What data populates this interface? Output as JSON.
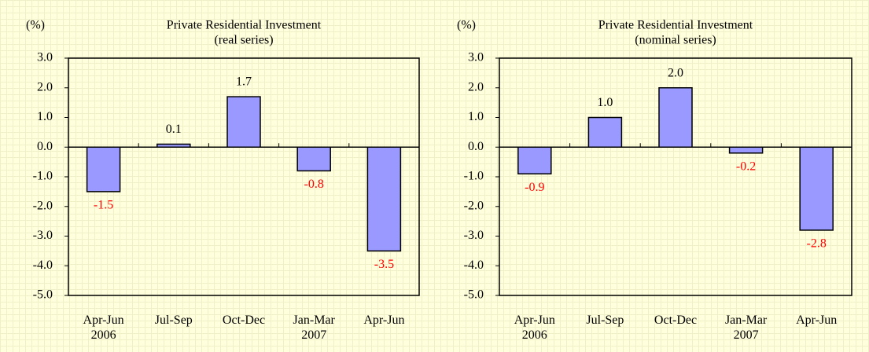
{
  "chart_data": [
    {
      "type": "bar",
      "title": "Private Residential Investment",
      "subtitle": "(real series)",
      "y_label": "(%)",
      "categories": [
        "Apr-Jun\n2006",
        "Jul-Sep",
        "Oct-Dec",
        "Jan-Mar\n2007",
        "Apr-Jun"
      ],
      "values": [
        -1.5,
        0.1,
        1.7,
        -0.8,
        -3.5
      ],
      "value_labels": [
        "-1.5",
        "0.1",
        "1.7",
        "-0.8",
        "-3.5"
      ],
      "color": "#9999ff",
      "negative_label_color": "#ff0000",
      "ylim": [
        -5,
        3
      ],
      "yticks": [
        {
          "value": 3,
          "label": "3.0"
        },
        {
          "value": 2,
          "label": "2.0"
        },
        {
          "value": 1,
          "label": "1.0"
        },
        {
          "value": 0,
          "label": "0.0"
        },
        {
          "value": -1,
          "label": "-1.0"
        },
        {
          "value": -2,
          "label": "-2.0"
        },
        {
          "value": -3,
          "label": "-3.0"
        },
        {
          "value": -4,
          "label": "-4.0"
        },
        {
          "value": -5,
          "label": "-5.0"
        }
      ]
    },
    {
      "type": "bar",
      "title": "Private Residential Investment",
      "subtitle": "(nominal series)",
      "y_label": "(%)",
      "categories": [
        "Apr-Jun\n2006",
        "Jul-Sep",
        "Oct-Dec",
        "Jan-Mar\n2007",
        "Apr-Jun"
      ],
      "values": [
        -0.9,
        1.0,
        2.0,
        -0.2,
        -2.8
      ],
      "value_labels": [
        "-0.9",
        "1.0",
        "2.0",
        "-0.2",
        "-2.8"
      ],
      "color": "#9999ff",
      "negative_label_color": "#ff0000",
      "ylim": [
        -5,
        3
      ],
      "yticks": [
        {
          "value": 3,
          "label": "3.0"
        },
        {
          "value": 2,
          "label": "2.0"
        },
        {
          "value": 1,
          "label": "1.0"
        },
        {
          "value": 0,
          "label": "0.0"
        },
        {
          "value": -1,
          "label": "-1.0"
        },
        {
          "value": -2,
          "label": "-2.0"
        },
        {
          "value": -3,
          "label": "-3.0"
        },
        {
          "value": -4,
          "label": "-4.0"
        },
        {
          "value": -5,
          "label": "-5.0"
        }
      ]
    }
  ]
}
